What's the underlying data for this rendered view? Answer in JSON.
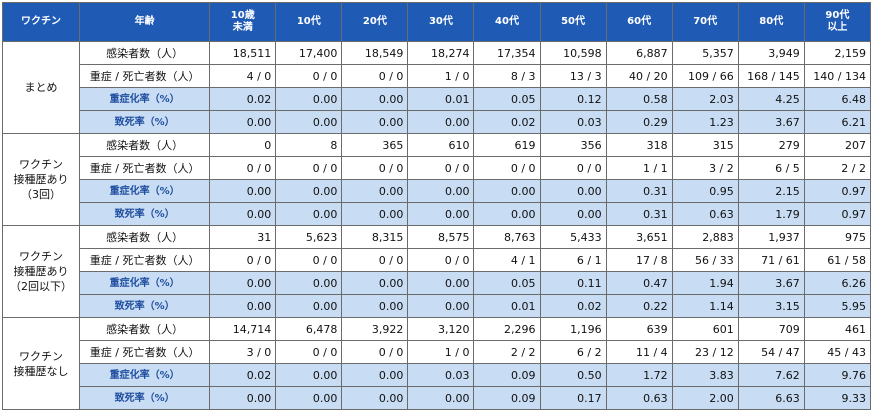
{
  "header": {
    "group_col": "ワクチン",
    "label_col": "年齢",
    "ages": [
      "10歳\n未満",
      "10代",
      "20代",
      "30代",
      "40代",
      "50代",
      "60代",
      "70代",
      "80代",
      "90代\n以上"
    ]
  },
  "groups": [
    {
      "name": "まとめ",
      "rows": [
        {
          "label": "感染者数（人）",
          "kind": "count",
          "values": [
            "18,511",
            "17,400",
            "18,549",
            "18,274",
            "17,354",
            "10,598",
            "6,887",
            "5,357",
            "3,949",
            "2,159"
          ]
        },
        {
          "label": "重症 / 死亡者数（人）",
          "kind": "count",
          "values": [
            "4 / 0",
            "0 / 0",
            "0 / 0",
            "1 / 0",
            "8 / 3",
            "13 / 3",
            "40 / 20",
            "109 / 66",
            "168 / 145",
            "140 / 134"
          ]
        },
        {
          "label": "重症化率（%）",
          "kind": "rate",
          "values": [
            "0.02",
            "0.00",
            "0.00",
            "0.01",
            "0.05",
            "0.12",
            "0.58",
            "2.03",
            "4.25",
            "6.48"
          ]
        },
        {
          "label": "致死率（%）",
          "kind": "rate",
          "values": [
            "0.00",
            "0.00",
            "0.00",
            "0.00",
            "0.02",
            "0.03",
            "0.29",
            "1.23",
            "3.67",
            "6.21"
          ]
        }
      ]
    },
    {
      "name": "ワクチン\n接種歴あり\n（3回）",
      "rows": [
        {
          "label": "感染者数（人）",
          "kind": "count",
          "values": [
            "0",
            "8",
            "365",
            "610",
            "619",
            "356",
            "318",
            "315",
            "279",
            "207"
          ]
        },
        {
          "label": "重症 / 死亡者数（人）",
          "kind": "count",
          "values": [
            "0 / 0",
            "0 / 0",
            "0 / 0",
            "0 / 0",
            "0 / 0",
            "0 / 0",
            "1 / 1",
            "3 / 2",
            "6 / 5",
            "2 / 2"
          ]
        },
        {
          "label": "重症化率（%）",
          "kind": "rate",
          "values": [
            "0.00",
            "0.00",
            "0.00",
            "0.00",
            "0.00",
            "0.00",
            "0.31",
            "0.95",
            "2.15",
            "0.97"
          ]
        },
        {
          "label": "致死率（%）",
          "kind": "rate",
          "values": [
            "0.00",
            "0.00",
            "0.00",
            "0.00",
            "0.00",
            "0.00",
            "0.31",
            "0.63",
            "1.79",
            "0.97"
          ]
        }
      ]
    },
    {
      "name": "ワクチン\n接種歴あり\n（2回以下）",
      "rows": [
        {
          "label": "感染者数（人）",
          "kind": "count",
          "values": [
            "31",
            "5,623",
            "8,315",
            "8,575",
            "8,763",
            "5,433",
            "3,651",
            "2,883",
            "1,937",
            "975"
          ]
        },
        {
          "label": "重症 / 死亡者数（人）",
          "kind": "count",
          "values": [
            "0 / 0",
            "0 / 0",
            "0 / 0",
            "0 / 0",
            "4 / 1",
            "6 / 1",
            "17 / 8",
            "56 / 33",
            "71 / 61",
            "61 / 58"
          ]
        },
        {
          "label": "重症化率（%）",
          "kind": "rate",
          "values": [
            "0.00",
            "0.00",
            "0.00",
            "0.00",
            "0.05",
            "0.11",
            "0.47",
            "1.94",
            "3.67",
            "6.26"
          ]
        },
        {
          "label": "致死率（%）",
          "kind": "rate",
          "values": [
            "0.00",
            "0.00",
            "0.00",
            "0.00",
            "0.01",
            "0.02",
            "0.22",
            "1.14",
            "3.15",
            "5.95"
          ]
        }
      ]
    },
    {
      "name": "ワクチン\n接種歴なし",
      "rows": [
        {
          "label": "感染者数（人）",
          "kind": "count",
          "values": [
            "14,714",
            "6,478",
            "3,922",
            "3,120",
            "2,296",
            "1,196",
            "639",
            "601",
            "709",
            "461"
          ]
        },
        {
          "label": "重症 / 死亡者数（人）",
          "kind": "count",
          "values": [
            "3 / 0",
            "0 / 0",
            "0 / 0",
            "1 / 0",
            "2 / 2",
            "6 / 2",
            "11 / 4",
            "23 / 12",
            "54 / 47",
            "45 / 43"
          ]
        },
        {
          "label": "重症化率（%）",
          "kind": "rate",
          "values": [
            "0.02",
            "0.00",
            "0.00",
            "0.03",
            "0.09",
            "0.50",
            "1.72",
            "3.83",
            "7.62",
            "9.76"
          ]
        },
        {
          "label": "致死率（%）",
          "kind": "rate",
          "values": [
            "0.00",
            "0.00",
            "0.00",
            "0.00",
            "0.09",
            "0.17",
            "0.63",
            "2.00",
            "6.63",
            "9.33"
          ]
        }
      ]
    }
  ]
}
